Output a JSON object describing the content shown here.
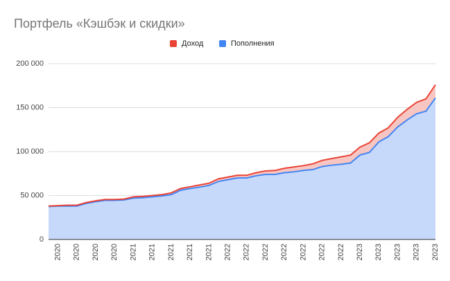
{
  "chart_data": {
    "type": "stacked_area",
    "title": "Портфель «Кэшбэк и скидки»",
    "categories": [
      null,
      "2020",
      null,
      "2020",
      null,
      "2020",
      null,
      "2020",
      null,
      "2021",
      null,
      "2021",
      null,
      "2021",
      null,
      "2021",
      null,
      "2021",
      null,
      "2022",
      null,
      "2022",
      null,
      "2022",
      null,
      "2022",
      null,
      "2022",
      null,
      "2022",
      null,
      "2022",
      null,
      "2023",
      null,
      "2023",
      null,
      "2023",
      null,
      "2023",
      null,
      "2023"
    ],
    "series": [
      {
        "name": "Доход",
        "color": "#ea4335",
        "values": [
          500,
          500,
          1000,
          1000,
          1000,
          1000,
          1000,
          1000,
          1000,
          1500,
          1500,
          1500,
          1500,
          2000,
          2000,
          2000,
          2500,
          2500,
          3000,
          3000,
          3000,
          3000,
          3500,
          4000,
          4500,
          5000,
          5500,
          5500,
          6500,
          7000,
          7500,
          8500,
          9000,
          9000,
          11000,
          10000,
          10000,
          11000,
          12000,
          13000,
          14000,
          15000
        ]
      },
      {
        "name": "Пополнения",
        "color": "#4285f4",
        "values": [
          37500,
          38000,
          38000,
          38000,
          41000,
          43000,
          44500,
          44500,
          45000,
          47000,
          47500,
          48500,
          49500,
          51000,
          56000,
          58000,
          59500,
          61500,
          66000,
          68000,
          70000,
          70000,
          72500,
          74000,
          74000,
          76000,
          77000,
          78500,
          79500,
          83000,
          84500,
          85500,
          87000,
          96000,
          99000,
          111000,
          117000,
          128000,
          136000,
          143000,
          146000,
          161000
        ]
      }
    ],
    "ylim": [
      0,
      200000
    ],
    "yticks": [
      0,
      {
        "value": 50000,
        "label": "50 000"
      },
      {
        "value": 100000,
        "label": "100 000"
      },
      {
        "value": 150000,
        "label": "150 000"
      },
      {
        "value": 200000,
        "label": "200 000"
      }
    ],
    "grid": true,
    "legend": "top"
  }
}
